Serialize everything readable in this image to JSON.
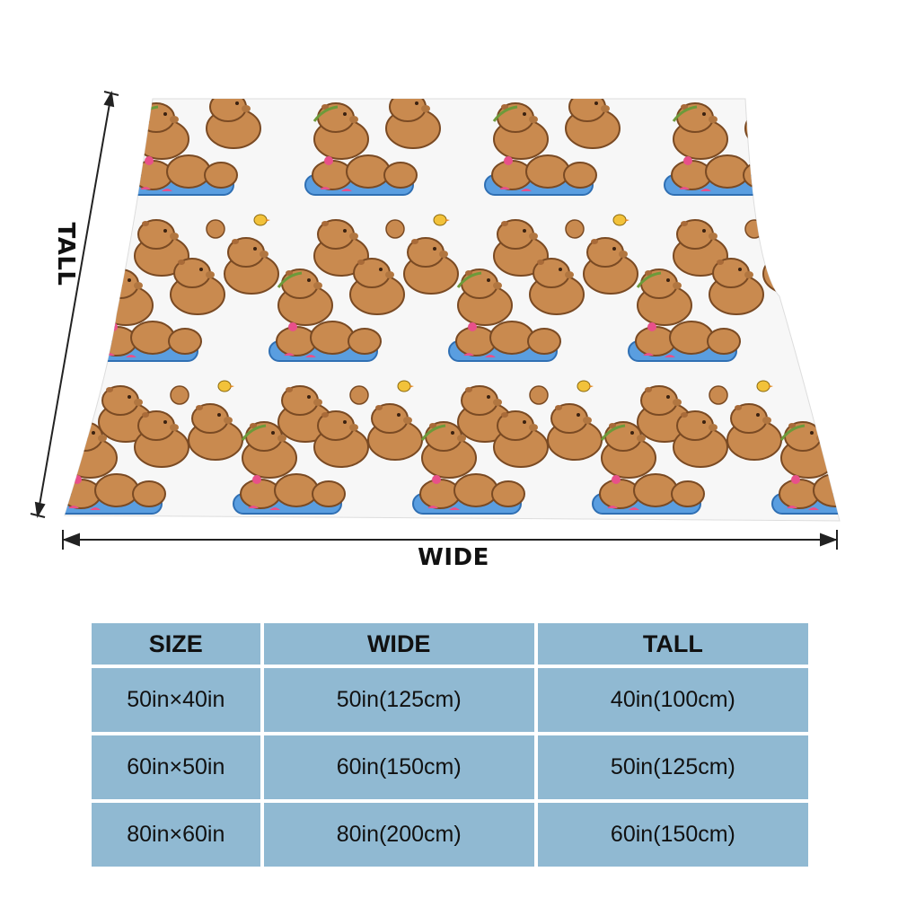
{
  "dimensions": {
    "wide_label": "WIDE",
    "tall_label": "TALL"
  },
  "table": {
    "headers": [
      "SIZE",
      "WIDE",
      "TALL"
    ],
    "rows": [
      [
        "50in×40in",
        "50in(125cm)",
        "40in(100cm)"
      ],
      [
        "60in×50in",
        "60in(150cm)",
        "50in(125cm)"
      ],
      [
        "80in×60in",
        "80in(200cm)",
        "60in(150cm)"
      ]
    ]
  },
  "colors": {
    "blanket_bg": "#f7f7f7",
    "capybara_body": "#c98a4f",
    "capybara_outline": "#7a4a23",
    "water": "#5a9ee0",
    "flower": "#e8508a",
    "table_cell": "#90b9d2"
  },
  "pattern_icons": [
    "capybara-icon",
    "water-pool-icon",
    "flower-icon",
    "bird-icon",
    "leaf-icon"
  ]
}
